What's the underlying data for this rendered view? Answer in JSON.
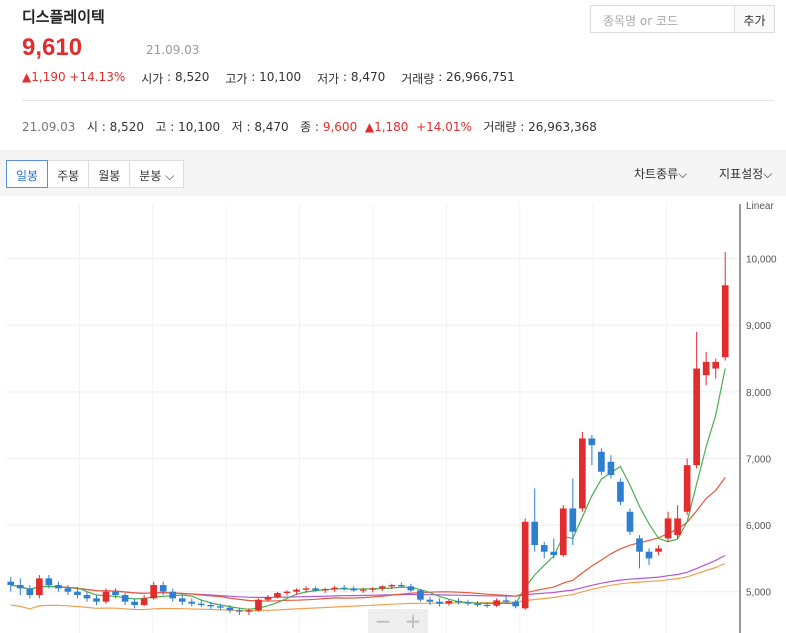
{
  "stock": {
    "name": "디스플레이텍",
    "price": "9,610",
    "date": "21.09.03",
    "change": "▲1,190",
    "change_pct": "+14.13%",
    "open_label": "시가",
    "open": "8,520",
    "high_label": "고가",
    "high": "10,100",
    "low_label": "저가",
    "low": "8,470",
    "volume_label": "거래량",
    "volume": "26,966,751"
  },
  "search": {
    "placeholder": "종목명 or 코드",
    "add_label": "추가"
  },
  "detail": {
    "date": "21.09.03",
    "open_label": "시",
    "open": "8,520",
    "high_label": "고",
    "high": "10,100",
    "low_label": "저",
    "low": "8,470",
    "close_label": "종",
    "close": "9,600",
    "change": "▲1,180",
    "change_pct": "+14.01%",
    "volume_label": "거래량",
    "volume": "26,963,368"
  },
  "toolbar": {
    "tabs": [
      {
        "label": "일봉"
      },
      {
        "label": "주봉"
      },
      {
        "label": "월봉"
      },
      {
        "label": "분봉 ⌵"
      }
    ],
    "chart_type": "차트종류⌵",
    "indicator": "지표설정⌵"
  },
  "zoom": {
    "out": "−",
    "in": "+"
  },
  "colors": {
    "up": "#e12d2d",
    "down": "#2f7fd0",
    "ma5": "#4caf50",
    "ma20": "#e55a3c",
    "ma60": "#b05ad8",
    "ma120": "#f0a050"
  },
  "chart_data": {
    "type": "candlestick",
    "scale_label": "Linear",
    "y_ticks": [
      10000,
      9000,
      8000,
      7000,
      6000,
      5000
    ],
    "y_tick_labels": [
      "10,000",
      "9,000",
      "8,000",
      "7,000",
      "6,000",
      "5,000"
    ],
    "ylim": [
      4380,
      10820
    ],
    "grid": true,
    "candles": [
      [
        5150,
        5220,
        5000,
        5100
      ],
      [
        5100,
        5200,
        4950,
        5050
      ],
      [
        5050,
        5100,
        4900,
        4950
      ],
      [
        4950,
        5250,
        4900,
        5200
      ],
      [
        5200,
        5250,
        5050,
        5100
      ],
      [
        5100,
        5150,
        5000,
        5050
      ],
      [
        5050,
        5100,
        4950,
        5000
      ],
      [
        5000,
        5050,
        4900,
        4950
      ],
      [
        4950,
        5000,
        4850,
        4900
      ],
      [
        4900,
        4950,
        4800,
        4850
      ],
      [
        4850,
        5050,
        4820,
        5000
      ],
      [
        5000,
        5050,
        4900,
        4950
      ],
      [
        4950,
        4980,
        4800,
        4850
      ],
      [
        4850,
        4900,
        4750,
        4800
      ],
      [
        4800,
        4950,
        4780,
        4900
      ],
      [
        4900,
        5150,
        4880,
        5100
      ],
      [
        5100,
        5150,
        4950,
        5000
      ],
      [
        5000,
        5050,
        4850,
        4900
      ],
      [
        4900,
        4950,
        4800,
        4850
      ],
      [
        4850,
        4900,
        4780,
        4820
      ],
      [
        4820,
        4870,
        4770,
        4800
      ],
      [
        4800,
        4850,
        4740,
        4780
      ],
      [
        4780,
        4820,
        4720,
        4760
      ],
      [
        4760,
        4800,
        4680,
        4720
      ],
      [
        4720,
        4760,
        4650,
        4700
      ],
      [
        4700,
        4750,
        4650,
        4720
      ],
      [
        4720,
        4900,
        4700,
        4880
      ],
      [
        4880,
        4950,
        4850,
        4920
      ],
      [
        4920,
        5000,
        4900,
        4980
      ],
      [
        4980,
        5020,
        4940,
        5000
      ],
      [
        5000,
        5050,
        4950,
        5030
      ],
      [
        5030,
        5080,
        4990,
        5050
      ],
      [
        5050,
        5080,
        5000,
        5020
      ],
      [
        5020,
        5060,
        4980,
        5040
      ],
      [
        5040,
        5090,
        5000,
        5060
      ],
      [
        5060,
        5100,
        5020,
        5050
      ],
      [
        5050,
        5080,
        5000,
        5020
      ],
      [
        5020,
        5060,
        4980,
        5030
      ],
      [
        5030,
        5070,
        4990,
        5050
      ],
      [
        5050,
        5100,
        5010,
        5080
      ],
      [
        5080,
        5120,
        5040,
        5100
      ],
      [
        5100,
        5140,
        5060,
        5080
      ],
      [
        5080,
        5120,
        5000,
        5020
      ],
      [
        5020,
        5040,
        4850,
        4880
      ],
      [
        4880,
        4920,
        4800,
        4850
      ],
      [
        4850,
        4900,
        4780,
        4820
      ],
      [
        4820,
        4880,
        4790,
        4860
      ],
      [
        4860,
        4900,
        4810,
        4840
      ],
      [
        4840,
        4880,
        4790,
        4820
      ],
      [
        4820,
        4860,
        4770,
        4800
      ],
      [
        4800,
        4840,
        4760,
        4790
      ],
      [
        4790,
        4900,
        4770,
        4870
      ],
      [
        4870,
        4950,
        4820,
        4850
      ],
      [
        4850,
        4880,
        4750,
        4780
      ],
      [
        4750,
        6100,
        4730,
        6050
      ],
      [
        6050,
        6550,
        5600,
        5700
      ],
      [
        5700,
        5750,
        5500,
        5600
      ],
      [
        5600,
        5800,
        5500,
        5550
      ],
      [
        5550,
        6300,
        5520,
        6250
      ],
      [
        6250,
        6700,
        5700,
        5900
      ],
      [
        6250,
        7400,
        6200,
        7300
      ],
      [
        7300,
        7350,
        6900,
        7200
      ],
      [
        7100,
        7150,
        6750,
        6800
      ],
      [
        6950,
        7050,
        6700,
        6750
      ],
      [
        6650,
        6700,
        6300,
        6350
      ],
      [
        6200,
        6250,
        5850,
        5900
      ],
      [
        5800,
        5850,
        5350,
        5600
      ],
      [
        5600,
        5650,
        5400,
        5500
      ],
      [
        5600,
        5700,
        5550,
        5650
      ],
      [
        5800,
        6200,
        5750,
        6100
      ],
      [
        5850,
        6300,
        5800,
        6100
      ],
      [
        6200,
        7000,
        6150,
        6900
      ],
      [
        6900,
        8900,
        6850,
        8350
      ],
      [
        8250,
        8600,
        8100,
        8450
      ],
      [
        8350,
        8500,
        8200,
        8450
      ],
      [
        8520,
        10100,
        8470,
        9600
      ]
    ]
  }
}
